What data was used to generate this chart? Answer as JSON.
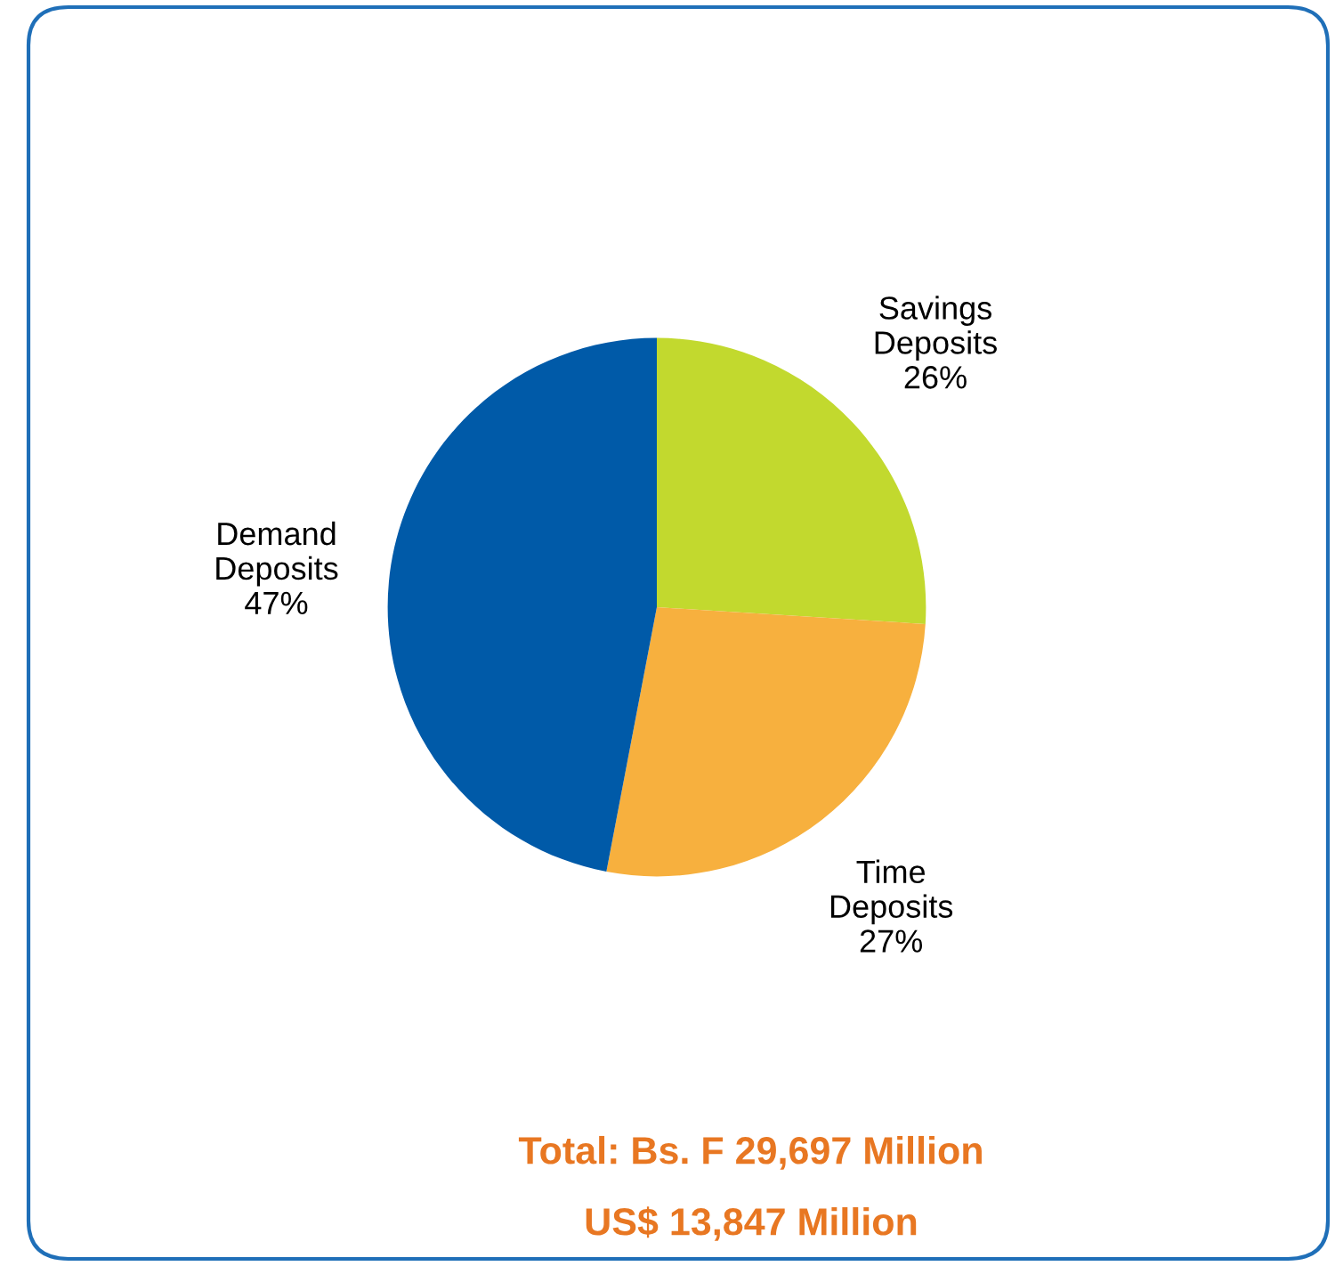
{
  "chart_data": {
    "type": "pie",
    "categories": [
      "Savings\nDeposits",
      "Time\nDeposits",
      "Demand\nDeposits"
    ],
    "values": [
      26,
      27,
      47
    ],
    "value_labels": [
      "26%",
      "27%",
      "47%"
    ],
    "colors": [
      "#c2d92e",
      "#f7b03e",
      "#005aa8"
    ],
    "annotations": [
      "Total: Bs. F 29,697 Million",
      "US$ 13,847 Million"
    ],
    "legend": false
  }
}
